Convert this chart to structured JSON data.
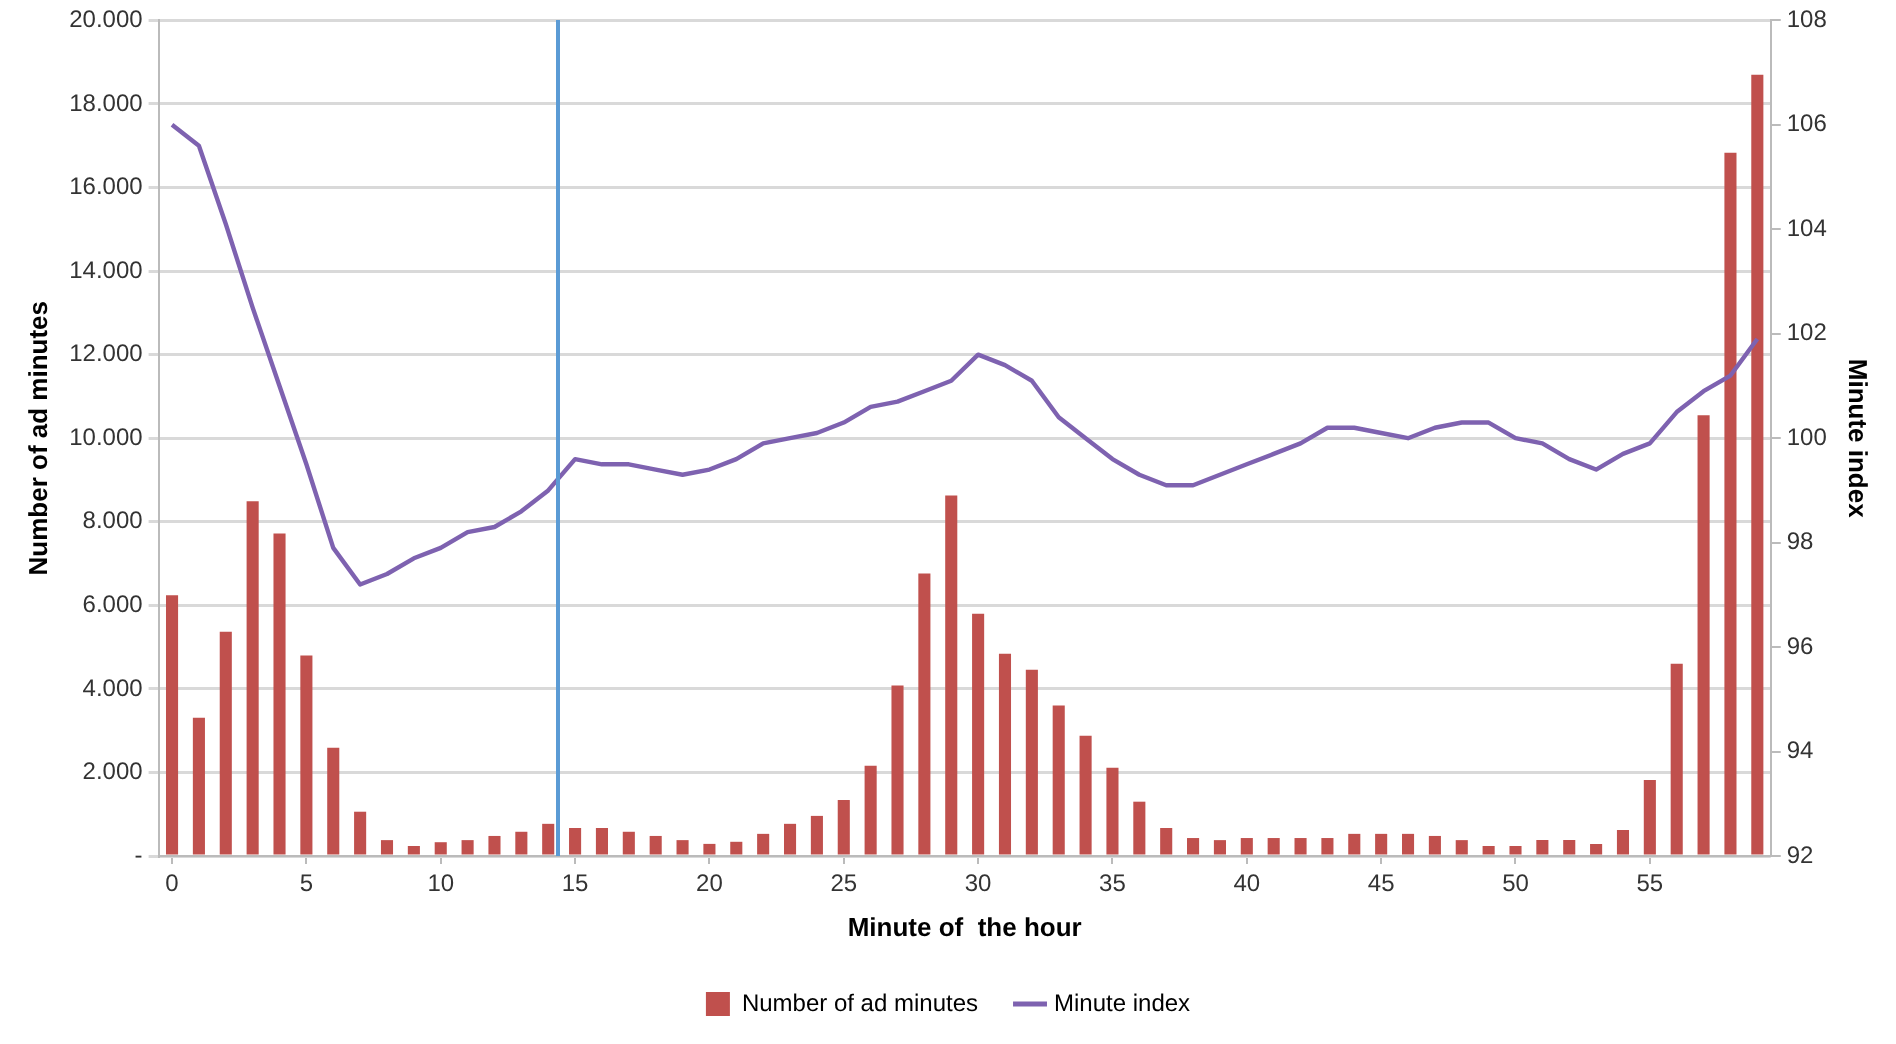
{
  "chart_data": {
    "type": "bar",
    "xlabel": "Minute of  the hour",
    "ylabel": "Number of ad minutes",
    "y2label": "Minute index",
    "categories": [
      "0",
      null,
      null,
      null,
      null,
      "5",
      null,
      null,
      null,
      null,
      "10",
      null,
      null,
      null,
      null,
      "15",
      null,
      null,
      null,
      null,
      "20",
      null,
      null,
      null,
      null,
      "25",
      null,
      null,
      null,
      null,
      "30",
      null,
      null,
      null,
      null,
      "35",
      null,
      null,
      null,
      null,
      "40",
      null,
      null,
      null,
      null,
      "45",
      null,
      null,
      null,
      null,
      "50",
      null,
      null,
      null,
      null,
      "55",
      null,
      null,
      null,
      null
    ],
    "ylim": [
      0,
      20000
    ],
    "yticks": [
      {
        "value": 0,
        "label": "-"
      },
      {
        "value": 2000,
        "label": "2.000"
      },
      {
        "value": 4000,
        "label": "4.000"
      },
      {
        "value": 6000,
        "label": "6.000"
      },
      {
        "value": 8000,
        "label": "8.000"
      },
      {
        "value": 10000,
        "label": "10.000"
      },
      {
        "value": 12000,
        "label": "12.000"
      },
      {
        "value": 14000,
        "label": "14.000"
      },
      {
        "value": 16000,
        "label": "16.000"
      },
      {
        "value": 18000,
        "label": "18.000"
      },
      {
        "value": 20000,
        "label": "20.000"
      }
    ],
    "y2lim": [
      92,
      108
    ],
    "y2ticks": [
      92,
      94,
      96,
      98,
      100,
      102,
      104,
      106,
      108
    ],
    "series": [
      {
        "name": "Number of ad minutes",
        "color": "#c0504d",
        "values": [
          6240,
          3310,
          5370,
          8490,
          7720,
          4800,
          2590,
          1060,
          380,
          240,
          330,
          380,
          480,
          580,
          770,
          670,
          670,
          580,
          480,
          380,
          290,
          340,
          530,
          770,
          960,
          1340,
          2160,
          4080,
          6760,
          8630,
          5800,
          4840,
          4460,
          3600,
          2880,
          2110,
          1300,
          670,
          430,
          380,
          430,
          430,
          430,
          430,
          530,
          530,
          530,
          480,
          380,
          240,
          240,
          380,
          380,
          290,
          620,
          1820,
          4600,
          10550,
          16830,
          18700
        ]
      },
      {
        "name": "Minute index",
        "type": "line",
        "axis": "y2",
        "color": "#7e62b0",
        "values": [
          106.0,
          105.6,
          104.1,
          102.5,
          101.0,
          99.5,
          97.9,
          97.2,
          97.4,
          97.7,
          97.9,
          98.2,
          98.3,
          98.6,
          99.0,
          99.6,
          99.5,
          99.5,
          99.4,
          99.3,
          99.4,
          99.6,
          99.9,
          100.0,
          100.1,
          100.3,
          100.6,
          100.7,
          100.9,
          101.1,
          101.6,
          101.4,
          101.1,
          100.4,
          100.0,
          99.6,
          99.3,
          99.1,
          99.1,
          99.3,
          99.5,
          99.7,
          99.9,
          100.2,
          100.2,
          100.1,
          100.0,
          100.2,
          100.3,
          100.3,
          100.0,
          99.9,
          99.6,
          99.4,
          99.7,
          99.9,
          100.5,
          100.9,
          101.2,
          101.9
        ]
      }
    ],
    "grid": "y",
    "legend": "bottom",
    "marker": "none",
    "line_style": "solid"
  }
}
